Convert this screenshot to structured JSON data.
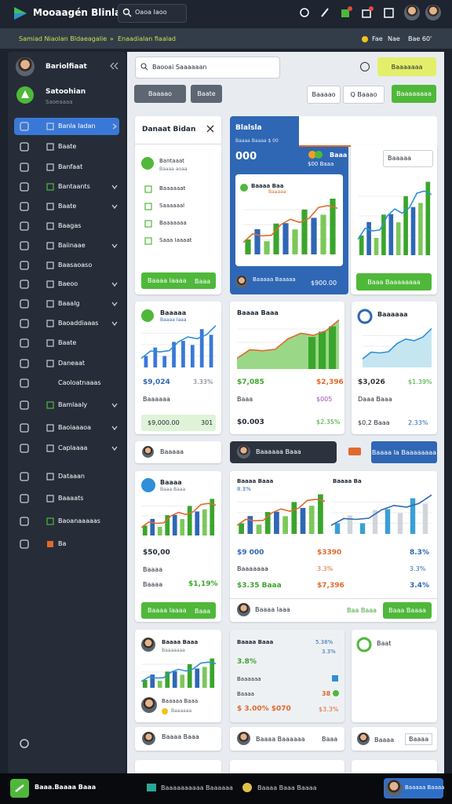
{
  "header": {
    "title": "Mooaagén Blinlal",
    "search": "Oaoa Iaoo"
  },
  "subheader": {
    "breadcrumb": "Samiad Niaolan Bldaeagalie",
    "separator": "»",
    "current": "Enaadialan fiaalad",
    "status": "Fae",
    "notes": "Nae",
    "count": "Bae 60'"
  },
  "sidebar": {
    "profile": "Bariolfiaat",
    "user_name": "Satoohian",
    "user_role": "Saoeaaaa",
    "items": [
      "Banla Iadan",
      "Baate",
      "Banfaat",
      "Bantaants",
      "Baate",
      "Baagas",
      "Baiinaae",
      "Baasaoaso",
      "Baeoo",
      "Baaalg",
      "Baoaddiaaas",
      "Baate",
      "Daneaat",
      "Caoloatnaaas",
      "Bamlaaly",
      "Baoiaaaoa",
      "Caplaaaa",
      "Dataaan",
      "Baaaats",
      "Baoanaaaaas",
      "Ba"
    ]
  },
  "toolbar": {
    "search": "Baooai Saaaaaan",
    "primary": "Baaaaaaa",
    "filter": "Baaaao",
    "view": "Baate",
    "export": "Baaaao",
    "query": "Q Baaao",
    "create": "Baaaaaaaa"
  },
  "order_card": {
    "title": "Danaat Bidan",
    "items": [
      "Bantaaat",
      "Baaaaaat",
      "Saaaaaal",
      "Baaaaaaa",
      "Saaa Iaaaat"
    ],
    "item_sub": "Baaaa aoaa",
    "button": "Baaaa Iaaaa",
    "button_side": "Baaa"
  },
  "stats_card": {
    "title": "Blalsla",
    "subtitle": "Baaaa Baaaa $ 00",
    "value": "000",
    "header_label": "Baaa",
    "header_sub": "$00 Baaa",
    "chart_title": "Baaaa Baa",
    "chart_tag": "Baaaaa",
    "footer_name": "Baaaaa Baaaaa",
    "footer_value": "$900.00"
  },
  "side_card": {
    "select": "Baaaaa",
    "button": "Baaa Baaaaaaaa"
  },
  "kpi": [
    {
      "title": "Baaaaa",
      "sub": "Baaaa Iaaa",
      "value": "$9,024",
      "change": "3.33%",
      "label": "Baaaaaa",
      "footer_value": "$9,000.00",
      "footer_side": "301"
    },
    {
      "title": "Baaaa Baaa",
      "value": "$7,085",
      "change": "$2,396",
      "label": "Baaa",
      "label_value": "$005",
      "footer_value": "$0.003",
      "footer_side": "$2.35%"
    },
    {
      "title": "Baaaaaa",
      "value": "$3,026",
      "change": "$1.39%",
      "label": "Daaa Baaa",
      "footer_value": "$0.2 Baaa",
      "footer_side": "2.33%"
    }
  ],
  "selectors": {
    "first": "Baaaaa",
    "second": "Baaaaaa Baaa",
    "action": "Baaaa Ia Baaaaaaaa"
  },
  "sales_card": {
    "title": "Baaaa",
    "sub": "Baaa Baaa",
    "value": "$50,00",
    "label": "Baaaa",
    "row_label": "Baaaa",
    "row_value": "$1,19%",
    "button": "Baaaa Iaaaa",
    "button_side": "Baaa"
  },
  "compare_card": {
    "left_title": "Baaaa Baaa",
    "left_change": "8.3%",
    "right_title": "Baaaa Ba",
    "rows": [
      [
        "$9 000",
        "$3390",
        "8.3%"
      ],
      [
        "Baaaaaaa",
        "3.3%",
        "3.3%"
      ],
      [
        "$3.35 Baaa",
        "$7,396",
        "3.4%"
      ]
    ],
    "footer_name": "Baaaa Iaaa",
    "footer_link": "Baa Baaa",
    "footer_button": "Baaa Baaaa"
  },
  "team_card": {
    "name": "Baaaa Baaa",
    "role": "Baaaaaaa",
    "second_name": "Baaaaa Baaa",
    "second_role": "Baaaaaa"
  },
  "summary_card": {
    "title": "Baaaa Baaa",
    "title_value": "5.38%",
    "second_value": "3.3%",
    "change": "3.8%",
    "label": "Baaaaaa",
    "row_label": "Baaaa",
    "row_value": "38",
    "total": "$ 3.00% $070",
    "total_side": "$3.3%"
  },
  "note_card": {
    "title": "Baat"
  },
  "bottom_row": {
    "first": "Baaaa Baaa",
    "second": "Baaaa Baaaaaa",
    "second_side": "Baaa",
    "third": "Baaaa",
    "third_side": "Baaaa"
  },
  "footer": {
    "brand": "Baaa.Baaaa Baaa",
    "link_one": "Baaaaaaaaaa Baaaaaa",
    "link_two": "Baaaa Baaa Baaaa",
    "user": "Baaaaa Baaaa"
  }
}
